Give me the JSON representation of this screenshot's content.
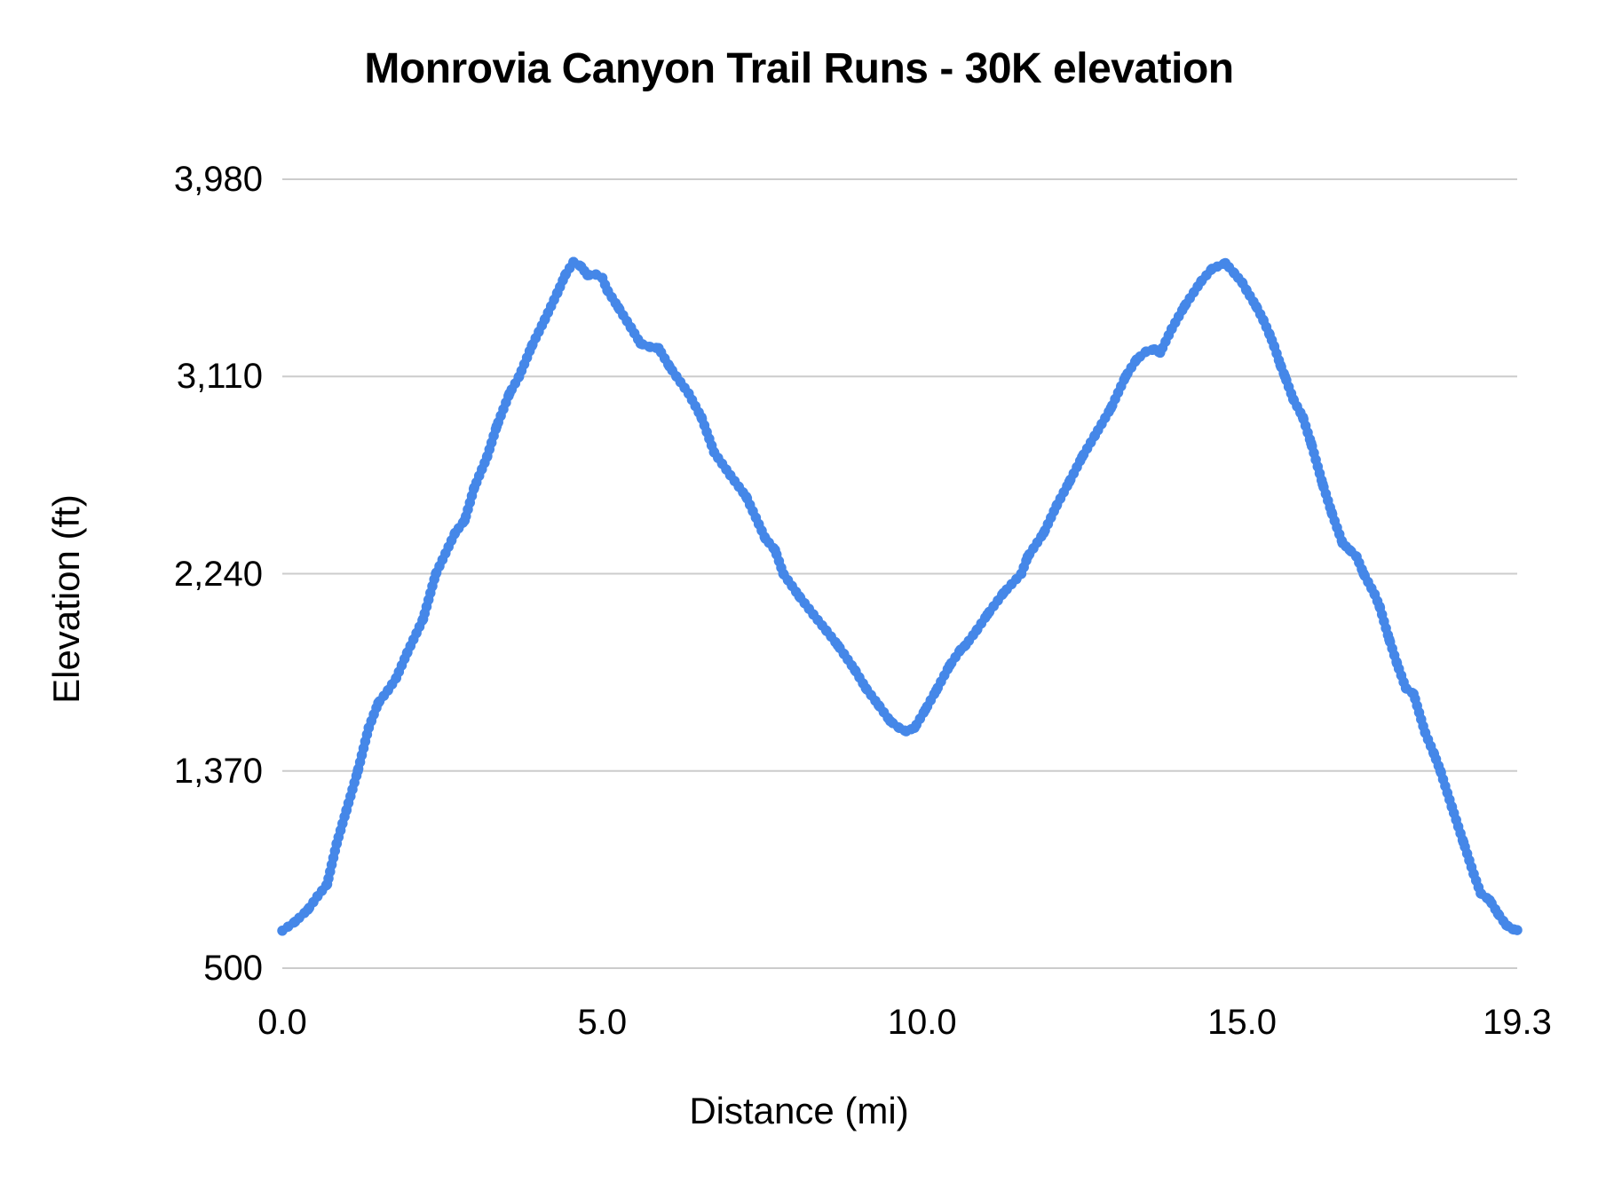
{
  "page": {
    "background": "#ffffff",
    "text_color": "#000000"
  },
  "chart_data": {
    "type": "line",
    "title": "Monrovia Canyon Trail Runs - 30K elevation",
    "xlabel": "Distance (mi)",
    "ylabel": "Elevation (ft)",
    "xlim": [
      0,
      19.3
    ],
    "ylim": [
      500,
      3980
    ],
    "grid": "horizontal",
    "gridline_color": "#cccccc",
    "legend": "none",
    "x_ticks": [
      {
        "value": 0,
        "label": "0.0"
      },
      {
        "value": 5,
        "label": "5.0"
      },
      {
        "value": 10,
        "label": "10.0"
      },
      {
        "value": 15,
        "label": "15.0"
      },
      {
        "value": 19.3,
        "label": "19.3"
      }
    ],
    "y_ticks": [
      {
        "value": 500,
        "label": "500"
      },
      {
        "value": 1370,
        "label": "1,370"
      },
      {
        "value": 2240,
        "label": "2,240"
      },
      {
        "value": 3110,
        "label": "3,110"
      },
      {
        "value": 3980,
        "label": "3,980"
      }
    ],
    "series": [
      {
        "name": "Elevation",
        "color": "#4587e8",
        "style": "thick-beaded-line",
        "points": [
          [
            0.0,
            665
          ],
          [
            0.2,
            705
          ],
          [
            0.4,
            758
          ],
          [
            0.55,
            817
          ],
          [
            0.7,
            870
          ],
          [
            0.85,
            1050
          ],
          [
            1.0,
            1195
          ],
          [
            1.18,
            1370
          ],
          [
            1.35,
            1560
          ],
          [
            1.5,
            1670
          ],
          [
            1.65,
            1725
          ],
          [
            1.78,
            1780
          ],
          [
            1.95,
            1890
          ],
          [
            2.2,
            2040
          ],
          [
            2.4,
            2240
          ],
          [
            2.7,
            2420
          ],
          [
            2.85,
            2475
          ],
          [
            3.0,
            2620
          ],
          [
            3.2,
            2755
          ],
          [
            3.35,
            2890
          ],
          [
            3.55,
            3035
          ],
          [
            3.7,
            3110
          ],
          [
            3.9,
            3245
          ],
          [
            4.1,
            3360
          ],
          [
            4.3,
            3480
          ],
          [
            4.42,
            3557
          ],
          [
            4.55,
            3615
          ],
          [
            4.67,
            3595
          ],
          [
            4.77,
            3557
          ],
          [
            4.9,
            3560
          ],
          [
            5.0,
            3545
          ],
          [
            5.08,
            3490
          ],
          [
            5.25,
            3415
          ],
          [
            5.45,
            3325
          ],
          [
            5.6,
            3255
          ],
          [
            5.75,
            3240
          ],
          [
            5.88,
            3235
          ],
          [
            6.05,
            3155
          ],
          [
            6.16,
            3110
          ],
          [
            6.35,
            3035
          ],
          [
            6.55,
            2930
          ],
          [
            6.75,
            2775
          ],
          [
            7.0,
            2675
          ],
          [
            7.25,
            2580
          ],
          [
            7.55,
            2395
          ],
          [
            7.7,
            2345
          ],
          [
            7.83,
            2240
          ],
          [
            8.08,
            2140
          ],
          [
            8.3,
            2060
          ],
          [
            8.5,
            1990
          ],
          [
            8.68,
            1925
          ],
          [
            8.78,
            1885
          ],
          [
            8.95,
            1815
          ],
          [
            9.12,
            1735
          ],
          [
            9.32,
            1660
          ],
          [
            9.5,
            1590
          ],
          [
            9.64,
            1560
          ],
          [
            9.75,
            1545
          ],
          [
            9.88,
            1560
          ],
          [
            10.05,
            1640
          ],
          [
            10.22,
            1725
          ],
          [
            10.43,
            1835
          ],
          [
            10.6,
            1905
          ],
          [
            10.68,
            1925
          ],
          [
            10.85,
            1990
          ],
          [
            11.02,
            2060
          ],
          [
            11.27,
            2155
          ],
          [
            11.55,
            2240
          ],
          [
            11.65,
            2315
          ],
          [
            11.9,
            2420
          ],
          [
            12.1,
            2540
          ],
          [
            12.3,
            2645
          ],
          [
            12.5,
            2755
          ],
          [
            12.7,
            2850
          ],
          [
            12.95,
            2970
          ],
          [
            13.18,
            3110
          ],
          [
            13.35,
            3185
          ],
          [
            13.5,
            3220
          ],
          [
            13.63,
            3230
          ],
          [
            13.72,
            3215
          ],
          [
            13.9,
            3320
          ],
          [
            14.1,
            3420
          ],
          [
            14.36,
            3530
          ],
          [
            14.53,
            3585
          ],
          [
            14.74,
            3610
          ],
          [
            14.88,
            3565
          ],
          [
            15.0,
            3525
          ],
          [
            15.07,
            3490
          ],
          [
            15.22,
            3420
          ],
          [
            15.33,
            3360
          ],
          [
            15.43,
            3295
          ],
          [
            15.5,
            3245
          ],
          [
            15.6,
            3160
          ],
          [
            15.67,
            3110
          ],
          [
            15.8,
            3010
          ],
          [
            15.95,
            2930
          ],
          [
            16.08,
            2815
          ],
          [
            16.26,
            2635
          ],
          [
            16.4,
            2510
          ],
          [
            16.57,
            2375
          ],
          [
            16.68,
            2345
          ],
          [
            16.79,
            2315
          ],
          [
            16.9,
            2240
          ],
          [
            17.07,
            2150
          ],
          [
            17.15,
            2095
          ],
          [
            17.3,
            1950
          ],
          [
            17.42,
            1845
          ],
          [
            17.56,
            1735
          ],
          [
            17.68,
            1710
          ],
          [
            17.86,
            1540
          ],
          [
            18.0,
            1445
          ],
          [
            18.1,
            1370
          ],
          [
            18.28,
            1210
          ],
          [
            18.46,
            1055
          ],
          [
            18.62,
            915
          ],
          [
            18.73,
            830
          ],
          [
            18.87,
            800
          ],
          [
            19.0,
            740
          ],
          [
            19.13,
            690
          ],
          [
            19.23,
            672
          ],
          [
            19.3,
            668
          ]
        ]
      }
    ]
  }
}
